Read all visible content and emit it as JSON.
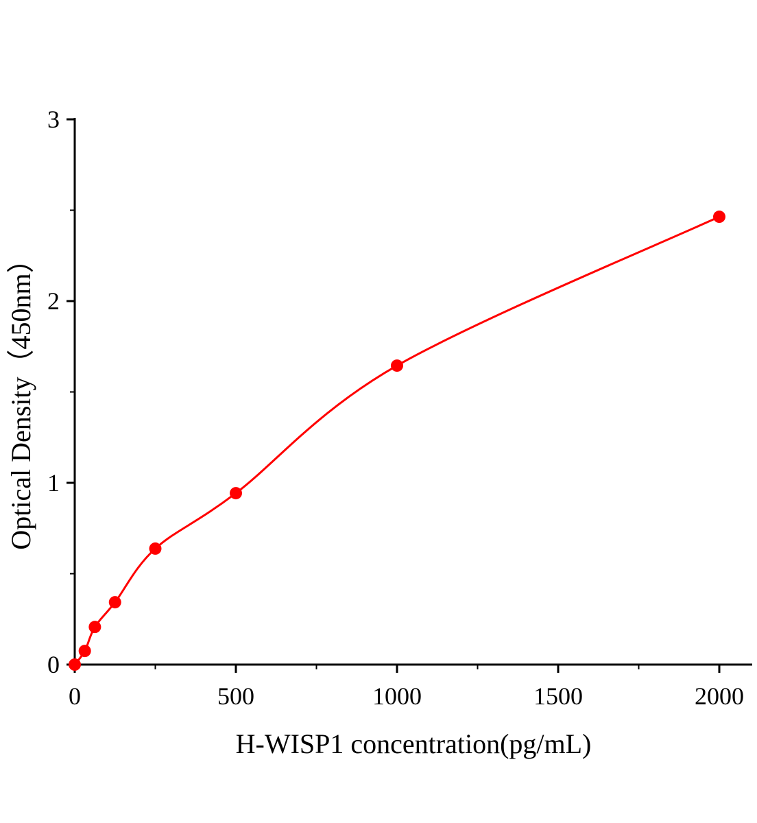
{
  "chart_data": {
    "type": "scatter",
    "title": "",
    "xlabel": "H-WISP1 concentration(pg/mL)",
    "ylabel": "Optical Density（450nm）",
    "xlim": [
      0,
      2100
    ],
    "ylim": [
      0,
      3
    ],
    "xticks": [
      "0",
      "500",
      "1000",
      "1500",
      "2000"
    ],
    "yticks": [
      "0",
      "1",
      "2",
      "3"
    ],
    "grid": false,
    "color": "#ff0000",
    "series": [
      {
        "x": [
          0,
          31.25,
          62.5,
          125,
          250,
          500,
          1000,
          2000
        ],
        "y": [
          0.0,
          0.075,
          0.207,
          0.343,
          0.638,
          0.943,
          1.645,
          2.464
        ],
        "fit_line": true
      }
    ]
  }
}
